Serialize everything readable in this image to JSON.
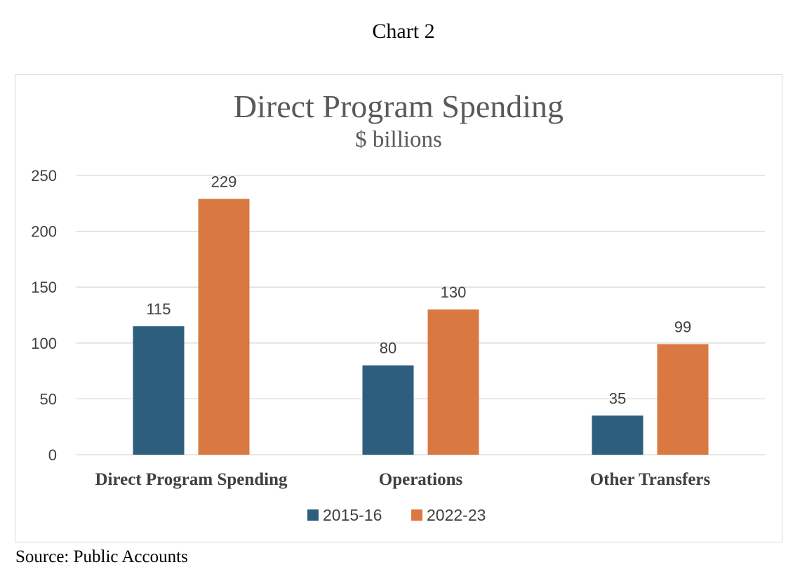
{
  "caption": "Chart 2",
  "source": "Source: Public Accounts",
  "chart_data": {
    "type": "bar",
    "title": "Direct Program Spending",
    "subtitle": "$ billions",
    "categories": [
      "Direct Program Spending",
      "Operations",
      "Other Transfers"
    ],
    "series": [
      {
        "name": "2015-16",
        "values": [
          115,
          80,
          35
        ],
        "color": "#2e5e7e"
      },
      {
        "name": "2022-23",
        "values": [
          229,
          130,
          99
        ],
        "color": "#d97941"
      }
    ],
    "ylim": [
      0,
      250
    ],
    "yticks": [
      0,
      50,
      100,
      150,
      200,
      250
    ],
    "grid": true,
    "legend": "bottom",
    "data_labels": true
  }
}
